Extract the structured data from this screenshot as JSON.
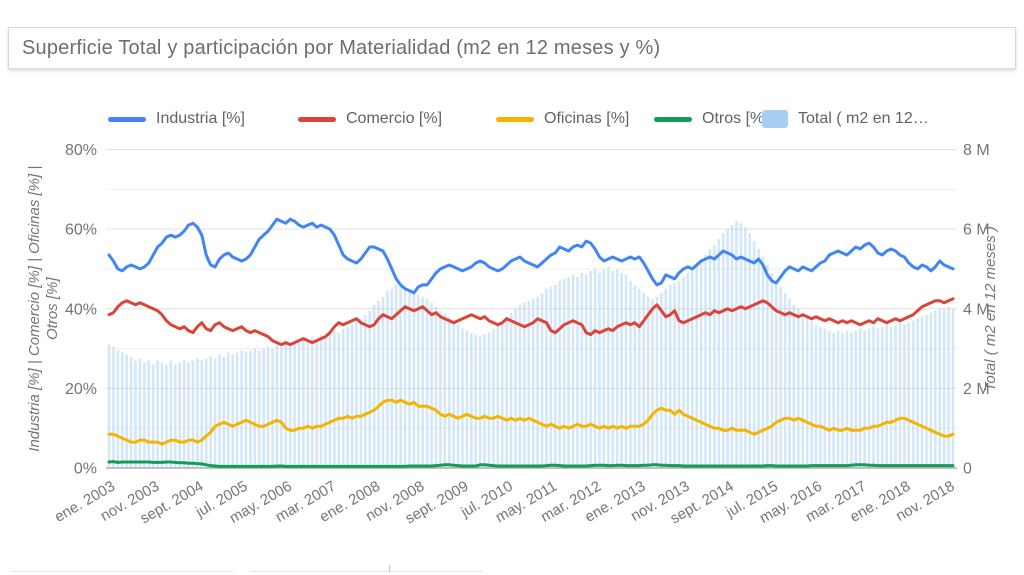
{
  "title": "Superficie Total y participación por Materialidad (m2 en 12 meses y %)",
  "legend": [
    {
      "label": "Industria [%]",
      "color": "#4285F4",
      "kind": "line"
    },
    {
      "label": "Comercio [%]",
      "color": "#DB4437",
      "kind": "line"
    },
    {
      "label": "Oficinas [%]",
      "color": "#F4B400",
      "kind": "line"
    },
    {
      "label": "Otros [%]",
      "color": "#0F9D58",
      "kind": "line"
    },
    {
      "label": "Total ( m2 en 12…",
      "color": "#A7CFF2",
      "kind": "bar"
    }
  ],
  "chart_data": {
    "type": "combo line+bar",
    "frequency": "monthly",
    "x_start": "ene. 2003",
    "x_end": "dic. 2018",
    "x_tick_every_months": 10,
    "x_tick_labels": [
      "ene. 2003",
      "nov. 2003",
      "sept. 2004",
      "jul. 2005",
      "may. 2006",
      "mar. 2007",
      "ene. 2008",
      "nov. 2008",
      "sept. 2009",
      "jul. 2010",
      "may. 2011",
      "mar. 2012",
      "ene. 2013",
      "nov. 2013",
      "sept. 2014",
      "jul. 2015",
      "may. 2016",
      "mar. 2017",
      "ene. 2018",
      "nov. 2018"
    ],
    "left_axis": {
      "label": "Industria [%] | Comercio [%] | Oficinas [%] | Otros [%]",
      "label_lines": [
        "Industria [%] | Comercio [%] | Oficinas [%] |",
        "Otros [%]"
      ],
      "min": 0,
      "max": 80,
      "grid_step": 10,
      "tick_labels": [
        "0%",
        "20%",
        "40%",
        "60%",
        "80%"
      ],
      "tick_values": [
        0,
        20,
        40,
        60,
        80
      ]
    },
    "right_axis": {
      "label": "Total ( m2 en 12 meses )",
      "min": 0,
      "max": 8,
      "unit": "millions of m2",
      "tick_labels": [
        "0",
        "2 M",
        "4 M",
        "6 M",
        "8 M"
      ],
      "tick_values": [
        0,
        2,
        4,
        6,
        8
      ]
    },
    "series": [
      {
        "name": "Industria [%]",
        "type": "line",
        "axis": "left",
        "color": "#4285F4",
        "values": [
          53.5,
          52,
          50,
          49.5,
          50.5,
          51,
          50.5,
          50,
          50.5,
          51.5,
          53.5,
          55.5,
          56.5,
          58,
          58.5,
          58,
          58.5,
          59.5,
          61,
          61.5,
          60.5,
          58.5,
          53.5,
          51,
          50.5,
          52.5,
          53.5,
          54,
          53,
          52.5,
          52,
          52.5,
          53.5,
          55.5,
          57.5,
          58.5,
          59.5,
          61,
          62.5,
          62,
          61.5,
          62.5,
          62,
          61,
          60.5,
          61,
          61.5,
          60.5,
          61,
          60.5,
          60,
          58.5,
          56,
          53.5,
          52.5,
          52,
          51.5,
          52.5,
          54,
          55.5,
          55.5,
          55,
          54.5,
          52.5,
          50,
          47.5,
          46,
          45,
          44.5,
          44,
          45.5,
          46,
          46,
          47.5,
          49,
          50,
          50.5,
          51,
          50.5,
          50,
          49.5,
          50,
          50.5,
          51.5,
          52,
          51.5,
          50.5,
          50,
          49.5,
          50,
          51,
          52,
          52.5,
          53,
          52,
          51.5,
          51,
          50.5,
          51.5,
          52.5,
          53.5,
          54,
          55.5,
          55,
          54.5,
          55.5,
          56,
          55.5,
          57,
          56.5,
          55,
          53,
          52,
          52.5,
          53,
          52.5,
          52,
          52.5,
          53,
          52.5,
          53,
          51.5,
          49.5,
          47.5,
          46,
          46.5,
          48.5,
          48,
          47.5,
          49,
          50,
          50.5,
          50,
          51,
          52,
          52.5,
          53,
          52.5,
          53.5,
          54.5,
          54,
          53.5,
          52.5,
          53,
          52.5,
          52,
          51.5,
          52.5,
          51,
          48.5,
          47,
          46.5,
          48,
          49.5,
          50.5,
          50,
          49.5,
          50.5,
          50,
          49.5,
          50.5,
          51.5,
          52,
          53.5,
          54,
          54.5,
          54,
          53.5,
          54.5,
          55.5,
          55,
          56,
          56.5,
          55.5,
          54,
          53.5,
          54.5,
          55,
          54.5,
          53.5,
          53,
          51.5,
          50.5,
          50,
          51,
          50.5,
          49.5,
          50.5,
          52,
          51,
          50.5,
          50
        ]
      },
      {
        "name": "Comercio [%]",
        "type": "line",
        "axis": "left",
        "color": "#DB4437",
        "values": [
          38.5,
          39,
          40.5,
          41.5,
          42,
          41.5,
          41,
          41.5,
          41,
          40.5,
          40,
          39.5,
          38.5,
          37,
          36,
          35.5,
          35,
          35.5,
          34.5,
          34,
          35.5,
          36.5,
          35,
          34.5,
          36,
          36.5,
          35.5,
          35,
          34.5,
          35,
          35.5,
          34.5,
          34,
          34.5,
          34,
          33.5,
          33,
          32,
          31.5,
          31,
          31.5,
          31,
          31.5,
          32,
          32.5,
          32,
          31.5,
          32,
          32.5,
          33,
          34,
          35.5,
          36.5,
          36,
          36.5,
          37,
          37.5,
          36.5,
          36,
          35.5,
          36,
          37.5,
          38.5,
          38,
          37.5,
          38.5,
          39.5,
          40.5,
          40,
          39.5,
          40,
          40.5,
          39.5,
          38.5,
          39,
          38,
          37.5,
          37,
          36.5,
          37,
          37.5,
          38,
          38.5,
          38,
          37.5,
          38,
          37,
          36.5,
          36,
          36.5,
          37.5,
          37,
          36.5,
          36,
          35.5,
          36,
          36.5,
          37.5,
          37,
          36.5,
          34.5,
          34,
          35,
          36,
          36.5,
          37,
          36.5,
          36,
          34,
          33.5,
          34.5,
          34,
          34.5,
          35,
          34.5,
          35.5,
          36,
          36.5,
          36,
          36.5,
          35.5,
          37,
          38.5,
          40,
          41,
          39.5,
          38,
          38.5,
          39.5,
          37,
          36.5,
          37,
          37.5,
          38,
          38.5,
          39,
          38.5,
          39.5,
          39,
          39.5,
          40,
          39.5,
          40,
          40.5,
          40,
          40.5,
          41,
          41.5,
          42,
          41.5,
          40.5,
          39.5,
          39,
          38.5,
          39,
          38.5,
          38,
          38.5,
          38,
          37.5,
          38,
          37.5,
          37,
          37.5,
          37,
          36.5,
          37,
          36.5,
          37,
          36.5,
          36,
          36.5,
          37,
          36.5,
          37.5,
          37,
          36.5,
          37,
          37.5,
          37,
          37.5,
          38,
          38.5,
          39.5,
          40.5,
          41,
          41.5,
          42,
          42,
          41.5,
          42,
          42.5
        ]
      },
      {
        "name": "Oficinas [%]",
        "type": "line",
        "axis": "left",
        "color": "#F4B400",
        "values": [
          8.5,
          8.5,
          8,
          7.5,
          7,
          6.5,
          6.5,
          7,
          7,
          6.5,
          6.5,
          6.5,
          6,
          6.5,
          7,
          7,
          6.5,
          6.5,
          7,
          7,
          6.5,
          7,
          8,
          9,
          10.5,
          11,
          11.5,
          11,
          10.5,
          11,
          11.5,
          12,
          11.5,
          11,
          10.5,
          10.5,
          11,
          11.5,
          12,
          11.5,
          10,
          9.5,
          9.5,
          10,
          10,
          10.5,
          10,
          10.5,
          10.5,
          11,
          11.5,
          12,
          12.5,
          12.5,
          13,
          12.5,
          13,
          13,
          13.5,
          14,
          14.5,
          15.5,
          16.5,
          17,
          17,
          16.5,
          17,
          16.5,
          16,
          16.5,
          15.5,
          15.5,
          15.5,
          15,
          14.5,
          13.5,
          13,
          13.5,
          13,
          12.5,
          13,
          13.5,
          13,
          12.5,
          12.5,
          13,
          12.5,
          12.5,
          13,
          12.5,
          12,
          12.5,
          12,
          12.5,
          12,
          12.5,
          12,
          11.5,
          11,
          10.5,
          11,
          10.5,
          10,
          10.5,
          10,
          10.5,
          11,
          10.5,
          10.5,
          11,
          10.5,
          10,
          10.5,
          10,
          10.5,
          10,
          10.5,
          10,
          10.5,
          10.5,
          10.5,
          11,
          12,
          13.5,
          14.5,
          15,
          14.5,
          14.5,
          13.5,
          14.5,
          13.5,
          13,
          12.5,
          12,
          11.5,
          11,
          10.5,
          10,
          10,
          9.5,
          9.5,
          10,
          9.5,
          9.5,
          9.5,
          9,
          8.5,
          9,
          9.5,
          10,
          10.5,
          11.5,
          12,
          12.5,
          12.5,
          12,
          12.5,
          12,
          11.5,
          11,
          10.5,
          10.5,
          10,
          9.5,
          10,
          9.5,
          9.5,
          10,
          9.5,
          9.5,
          9.5,
          10,
          10,
          10.5,
          10.5,
          11,
          11.5,
          11.5,
          12,
          12.5,
          12.5,
          12,
          11.5,
          11,
          10.5,
          10,
          9.5,
          9,
          8.5,
          8,
          8,
          8.5
        ]
      },
      {
        "name": "Otros [%]",
        "type": "line",
        "axis": "left",
        "color": "#0F9D58",
        "values": [
          1.5,
          1.6,
          1.4,
          1.5,
          1.5,
          1.5,
          1.5,
          1.5,
          1.5,
          1.5,
          1.4,
          1.4,
          1.4,
          1.5,
          1.5,
          1.4,
          1.3,
          1.3,
          1.2,
          1.2,
          1.1,
          1,
          0.8,
          0.6,
          0.5,
          0.4,
          0.4,
          0.4,
          0.4,
          0.4,
          0.4,
          0.4,
          0.4,
          0.4,
          0.4,
          0.4,
          0.4,
          0.4,
          0.5,
          0.5,
          0.4,
          0.4,
          0.4,
          0.4,
          0.4,
          0.4,
          0.4,
          0.4,
          0.4,
          0.4,
          0.4,
          0.4,
          0.4,
          0.4,
          0.4,
          0.4,
          0.4,
          0.4,
          0.4,
          0.4,
          0.4,
          0.4,
          0.4,
          0.4,
          0.4,
          0.4,
          0.4,
          0.4,
          0.5,
          0.5,
          0.5,
          0.5,
          0.5,
          0.5,
          0.6,
          0.7,
          0.8,
          0.8,
          0.7,
          0.6,
          0.5,
          0.5,
          0.5,
          0.5,
          0.8,
          0.8,
          0.7,
          0.6,
          0.5,
          0.5,
          0.5,
          0.5,
          0.5,
          0.5,
          0.5,
          0.5,
          0.5,
          0.5,
          0.5,
          0.6,
          0.7,
          0.7,
          0.6,
          0.5,
          0.5,
          0.5,
          0.5,
          0.5,
          0.5,
          0.6,
          0.7,
          0.7,
          0.7,
          0.6,
          0.6,
          0.7,
          0.7,
          0.6,
          0.6,
          0.6,
          0.6,
          0.7,
          0.7,
          0.8,
          0.8,
          0.7,
          0.7,
          0.6,
          0.6,
          0.6,
          0.5,
          0.5,
          0.5,
          0.5,
          0.5,
          0.5,
          0.5,
          0.5,
          0.5,
          0.5,
          0.5,
          0.5,
          0.5,
          0.5,
          0.5,
          0.5,
          0.5,
          0.5,
          0.5,
          0.6,
          0.6,
          0.5,
          0.5,
          0.5,
          0.5,
          0.5,
          0.5,
          0.5,
          0.5,
          0.6,
          0.6,
          0.6,
          0.6,
          0.6,
          0.6,
          0.6,
          0.6,
          0.6,
          0.7,
          0.8,
          0.8,
          0.8,
          0.7,
          0.7,
          0.6,
          0.6,
          0.6,
          0.6,
          0.6,
          0.6,
          0.6,
          0.6,
          0.6,
          0.6,
          0.6,
          0.6,
          0.6,
          0.6,
          0.6,
          0.6,
          0.6,
          0.6
        ]
      },
      {
        "name": "Total ( m2 en 12 meses )",
        "type": "bar",
        "axis": "right",
        "color": "#A7CFF2",
        "values": [
          3.1,
          3.05,
          2.95,
          2.9,
          2.85,
          2.8,
          2.7,
          2.75,
          2.65,
          2.7,
          2.6,
          2.7,
          2.65,
          2.6,
          2.7,
          2.6,
          2.65,
          2.7,
          2.65,
          2.7,
          2.75,
          2.7,
          2.75,
          2.8,
          2.75,
          2.85,
          2.8,
          2.9,
          2.85,
          2.9,
          2.95,
          2.9,
          2.95,
          3,
          2.95,
          3,
          3.05,
          3,
          3.1,
          3.05,
          3.15,
          3.1,
          3.2,
          3.15,
          3.25,
          3.2,
          3.3,
          3.25,
          3.35,
          3.3,
          3.4,
          3.45,
          3.4,
          3.5,
          3.55,
          3.6,
          3.7,
          3.75,
          3.85,
          3.95,
          4.1,
          4.2,
          4.3,
          4.45,
          4.5,
          4.6,
          4.55,
          4.5,
          4.45,
          4.4,
          4.35,
          4.3,
          4.25,
          4.15,
          4.05,
          3.95,
          3.9,
          3.8,
          3.7,
          3.6,
          3.5,
          3.45,
          3.4,
          3.35,
          3.3,
          3.35,
          3.4,
          3.5,
          3.6,
          3.7,
          3.8,
          3.9,
          4,
          4.1,
          4.15,
          4.2,
          4.25,
          4.3,
          4.4,
          4.5,
          4.55,
          4.6,
          4.7,
          4.75,
          4.8,
          4.85,
          4.8,
          4.9,
          4.85,
          4.95,
          5,
          4.9,
          5,
          5.05,
          4.95,
          5,
          4.9,
          4.85,
          4.7,
          4.6,
          4.5,
          4.4,
          4.3,
          4.25,
          4.3,
          4.4,
          4.5,
          4.6,
          4.65,
          4.7,
          4.8,
          4.9,
          5,
          5.1,
          5.2,
          5.35,
          5.5,
          5.6,
          5.75,
          5.9,
          6,
          6.1,
          6.2,
          6.15,
          6.05,
          5.9,
          5.7,
          5.5,
          5.3,
          5.1,
          4.9,
          4.7,
          4.55,
          4.4,
          4.25,
          4.1,
          4,
          3.9,
          3.8,
          3.7,
          3.6,
          3.55,
          3.5,
          3.45,
          3.4,
          3.45,
          3.4,
          3.45,
          3.4,
          3.45,
          3.5,
          3.45,
          3.5,
          3.55,
          3.5,
          3.55,
          3.6,
          3.55,
          3.6,
          3.65,
          3.6,
          3.65,
          3.7,
          3.75,
          3.8,
          3.85,
          3.9,
          3.95,
          4,
          4,
          4.05,
          4
        ]
      }
    ],
    "style": {
      "bar_fill": "#A7CFF2",
      "bar_opacity": 0.5,
      "grid_minor_color": "#efefef",
      "grid_major_color": "#e2e2e2",
      "baseline_color": "#9e9e9e",
      "axis_text_color": "#757575",
      "legend_text_color": "#5f6368"
    }
  }
}
